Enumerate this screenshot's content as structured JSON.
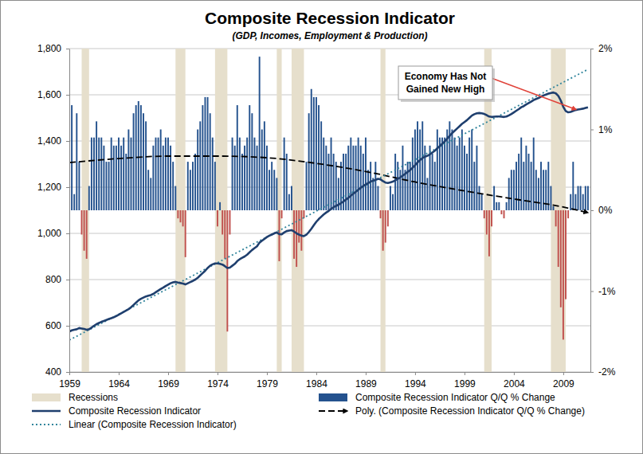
{
  "chart_data": {
    "type": "line",
    "title": "Composite Recession Indicator",
    "subtitle": "(GDP, Incomes, Employment & Production)",
    "xlim": [
      1959,
      2011.75
    ],
    "xticks": [
      1959,
      1964,
      1969,
      1974,
      1979,
      1984,
      1989,
      1994,
      1999,
      2004,
      2009
    ],
    "ylim": [
      400,
      1800
    ],
    "yticks": [
      400,
      600,
      800,
      {
        "value": 1000,
        "label": "1,000"
      },
      {
        "value": 1200,
        "label": "1,200"
      },
      {
        "value": 1400,
        "label": "1,400"
      },
      {
        "value": 1600,
        "label": "1,600"
      },
      {
        "value": 1800,
        "label": "1,800"
      }
    ],
    "y2lim": [
      -2,
      2
    ],
    "y2ticks": [
      {
        "value": -2,
        "label": "-2%"
      },
      {
        "value": -1,
        "label": "-1%"
      },
      {
        "value": 0,
        "label": "0%"
      },
      {
        "value": 1,
        "label": "1%"
      },
      {
        "value": 2,
        "label": "2%"
      }
    ],
    "grid": true,
    "legend": "bottom",
    "x": [
      1959,
      1959.25,
      1959.5,
      1959.75,
      1960,
      1960.25,
      1960.5,
      1960.75,
      1961,
      1961.25,
      1961.5,
      1961.75,
      1962,
      1962.25,
      1962.5,
      1962.75,
      1963,
      1963.25,
      1963.5,
      1963.75,
      1964,
      1964.25,
      1964.5,
      1964.75,
      1965,
      1965.25,
      1965.5,
      1965.75,
      1966,
      1966.25,
      1966.5,
      1966.75,
      1967,
      1967.25,
      1967.5,
      1967.75,
      1968,
      1968.25,
      1968.5,
      1968.75,
      1969,
      1969.25,
      1969.5,
      1969.75,
      1970,
      1970.25,
      1970.5,
      1970.75,
      1971,
      1971.25,
      1971.5,
      1971.75,
      1972,
      1972.25,
      1972.5,
      1972.75,
      1973,
      1973.25,
      1973.5,
      1973.75,
      1974,
      1974.25,
      1974.5,
      1974.75,
      1975,
      1975.25,
      1975.5,
      1975.75,
      1976,
      1976.25,
      1976.5,
      1976.75,
      1977,
      1977.25,
      1977.5,
      1977.75,
      1978,
      1978.25,
      1978.5,
      1978.75,
      1979,
      1979.25,
      1979.5,
      1979.75,
      1980,
      1980.25,
      1980.5,
      1980.75,
      1981,
      1981.25,
      1981.5,
      1981.75,
      1982,
      1982.25,
      1982.5,
      1982.75,
      1983,
      1983.25,
      1983.5,
      1983.75,
      1984,
      1984.25,
      1984.5,
      1984.75,
      1985,
      1985.25,
      1985.5,
      1985.75,
      1986,
      1986.25,
      1986.5,
      1986.75,
      1987,
      1987.25,
      1987.5,
      1987.75,
      1988,
      1988.25,
      1988.5,
      1988.75,
      1989,
      1989.25,
      1989.5,
      1989.75,
      1990,
      1990.25,
      1990.5,
      1990.75,
      1991,
      1991.25,
      1991.5,
      1991.75,
      1992,
      1992.25,
      1992.5,
      1992.75,
      1993,
      1993.25,
      1993.5,
      1993.75,
      1994,
      1994.25,
      1994.5,
      1994.75,
      1995,
      1995.25,
      1995.5,
      1995.75,
      1996,
      1996.25,
      1996.5,
      1996.75,
      1997,
      1997.25,
      1997.5,
      1997.75,
      1998,
      1998.25,
      1998.5,
      1998.75,
      1999,
      1999.25,
      1999.5,
      1999.75,
      2000,
      2000.25,
      2000.5,
      2000.75,
      2001,
      2001.25,
      2001.5,
      2001.75,
      2002,
      2002.25,
      2002.5,
      2002.75,
      2003,
      2003.25,
      2003.5,
      2003.75,
      2004,
      2004.25,
      2004.5,
      2004.75,
      2005,
      2005.25,
      2005.5,
      2005.75,
      2006,
      2006.25,
      2006.5,
      2006.75,
      2007,
      2007.25,
      2007.5,
      2007.75,
      2008,
      2008.25,
      2008.5,
      2008.75,
      2009,
      2009.25,
      2009.5,
      2009.75,
      2010,
      2010.25,
      2010.5,
      2010.75,
      2011,
      2011.25,
      2011.5
    ],
    "series": [
      {
        "name": "Recessions",
        "type": "band",
        "color": "#e6dfcc",
        "values": [
          [
            1960.25,
            1961
          ],
          [
            1969.75,
            1970.75
          ],
          [
            1973.75,
            1975
          ],
          [
            1980,
            1980.5
          ],
          [
            1981.5,
            1982.75
          ],
          [
            1990.5,
            1991
          ],
          [
            2001,
            2001.75
          ],
          [
            2007.75,
            2009.25
          ]
        ]
      },
      {
        "name": "Composite Recession Indicator Q/Q % Change",
        "type": "bar",
        "axis": "y2",
        "color": "#24528e",
        "values": [
          1.5,
          1.3,
          0.2,
          1.2,
          0.6,
          -0.3,
          -0.5,
          -0.6,
          0.3,
          0.9,
          0.9,
          1.1,
          0.9,
          0.9,
          0.8,
          0.6,
          0.6,
          0.9,
          0.8,
          0.8,
          0.9,
          0.8,
          0.9,
          0.7,
          1.0,
          0.9,
          1.2,
          1.3,
          1.35,
          1.3,
          1.2,
          1.1,
          0.5,
          0.4,
          0.8,
          0.9,
          0.9,
          1.0,
          0.8,
          0.9,
          0.9,
          0.8,
          0.6,
          0.3,
          -0.1,
          -0.15,
          -0.2,
          -0.58,
          0.6,
          0.5,
          0.6,
          0.7,
          1.0,
          1.1,
          1.3,
          1.4,
          1.4,
          1.2,
          0.9,
          0.6,
          -0.2,
          0.1,
          -0.3,
          -0.6,
          -1.5,
          -0.3,
          0.9,
          0.8,
          1.3,
          0.9,
          0.7,
          0.8,
          0.9,
          1.3,
          1.2,
          0.9,
          0.8,
          1.9,
          1.0,
          1.1,
          0.8,
          0.5,
          0.6,
          0.5,
          0.4,
          -0.63,
          -0.1,
          0.9,
          0.7,
          0.2,
          0.3,
          -0.6,
          -0.7,
          -0.4,
          -0.5,
          -0.1,
          0.6,
          1.2,
          1.5,
          1.4,
          1.4,
          1.3,
          1.1,
          0.9,
          0.8,
          0.7,
          0.9,
          0.7,
          0.6,
          0.4,
          0.6,
          0.7,
          0.7,
          0.8,
          0.9,
          0.8,
          0.8,
          0.9,
          0.8,
          0.7,
          0.9,
          0.5,
          0.6,
          0.4,
          0.6,
          0.3,
          -0.1,
          -0.5,
          -0.4,
          -0.2,
          0.3,
          0.2,
          0.7,
          0.6,
          0.5,
          0.8,
          0.5,
          0.6,
          0.6,
          0.9,
          1.0,
          1.1,
          1.0,
          1.1,
          0.8,
          0.4,
          0.8,
          0.7,
          0.6,
          1.0,
          0.9,
          0.9,
          0.9,
          1.0,
          1.1,
          1.0,
          0.9,
          0.8,
          0.9,
          1.0,
          0.8,
          0.7,
          0.9,
          1.0,
          0.6,
          0.8,
          0.3,
          0.2,
          -0.1,
          -0.3,
          -0.57,
          -0.2,
          0.3,
          0.1,
          0.1,
          -0.05,
          -0.1,
          0.1,
          0.4,
          0.5,
          0.5,
          0.6,
          0.7,
          0.9,
          0.6,
          0.8,
          0.7,
          0.6,
          0.9,
          0.5,
          0.4,
          0.6,
          0.5,
          0.5,
          0.6,
          0.3,
          0.05,
          -0.2,
          -0.7,
          -1.2,
          -1.6,
          -1.1,
          -0.1,
          0.2,
          0.6,
          0.2,
          0.3,
          0.3,
          0.2,
          0.3,
          0.3
        ],
        "colors": [
          "#24528e",
          "#24528e",
          "#24528e",
          "#24528e",
          "#24528e",
          "#c0504d",
          "#c0504d",
          "#c0504d",
          "#24528e",
          "#24528e",
          "#24528e",
          "#24528e",
          "#24528e",
          "#24528e",
          "#24528e",
          "#24528e",
          "#24528e",
          "#24528e",
          "#24528e",
          "#24528e",
          "#24528e",
          "#24528e",
          "#24528e",
          "#24528e",
          "#24528e",
          "#24528e",
          "#24528e",
          "#24528e",
          "#24528e",
          "#24528e",
          "#24528e",
          "#24528e",
          "#24528e",
          "#24528e",
          "#24528e",
          "#24528e",
          "#24528e",
          "#24528e",
          "#24528e",
          "#24528e",
          "#24528e",
          "#24528e",
          "#24528e",
          "#24528e",
          "#c0504d",
          "#c0504d",
          "#c0504d",
          "#c0504d",
          "#24528e",
          "#24528e",
          "#24528e",
          "#24528e",
          "#24528e",
          "#24528e",
          "#24528e",
          "#24528e",
          "#24528e",
          "#24528e",
          "#24528e",
          "#24528e",
          "#c0504d",
          "#24528e",
          "#c0504d",
          "#c0504d",
          "#c0504d",
          "#c0504d",
          "#24528e",
          "#24528e",
          "#24528e",
          "#24528e",
          "#24528e",
          "#24528e",
          "#24528e",
          "#24528e",
          "#24528e",
          "#24528e",
          "#24528e",
          "#24528e",
          "#24528e",
          "#24528e",
          "#24528e",
          "#24528e",
          "#24528e",
          "#24528e",
          "#24528e",
          "#c0504d",
          "#c0504d",
          "#24528e",
          "#24528e",
          "#24528e",
          "#24528e",
          "#c0504d",
          "#c0504d",
          "#c0504d",
          "#c0504d",
          "#c0504d",
          "#24528e",
          "#24528e",
          "#24528e",
          "#24528e",
          "#24528e",
          "#24528e",
          "#24528e",
          "#24528e",
          "#24528e",
          "#24528e",
          "#24528e",
          "#24528e",
          "#24528e",
          "#24528e",
          "#24528e",
          "#24528e",
          "#24528e",
          "#24528e",
          "#24528e",
          "#24528e",
          "#24528e",
          "#24528e",
          "#24528e",
          "#24528e",
          "#24528e",
          "#24528e",
          "#24528e",
          "#24528e",
          "#24528e",
          "#24528e",
          "#c0504d",
          "#c0504d",
          "#c0504d",
          "#c0504d",
          "#24528e",
          "#24528e",
          "#24528e",
          "#24528e",
          "#24528e",
          "#24528e",
          "#24528e",
          "#24528e",
          "#24528e",
          "#24528e",
          "#24528e",
          "#24528e",
          "#24528e",
          "#24528e",
          "#24528e",
          "#24528e",
          "#24528e",
          "#24528e",
          "#24528e",
          "#24528e",
          "#24528e",
          "#24528e",
          "#24528e",
          "#24528e",
          "#24528e",
          "#24528e",
          "#24528e",
          "#24528e",
          "#24528e",
          "#24528e",
          "#24528e",
          "#24528e",
          "#24528e",
          "#24528e",
          "#24528e",
          "#24528e",
          "#24528e",
          "#24528e",
          "#c0504d",
          "#c0504d",
          "#c0504d",
          "#c0504d",
          "#24528e",
          "#24528e",
          "#24528e",
          "#c0504d",
          "#c0504d",
          "#24528e",
          "#24528e",
          "#24528e",
          "#24528e",
          "#24528e",
          "#24528e",
          "#24528e",
          "#24528e",
          "#24528e",
          "#24528e",
          "#24528e",
          "#24528e",
          "#24528e",
          "#24528e",
          "#24528e",
          "#24528e",
          "#24528e",
          "#24528e",
          "#24528e",
          "#24528e",
          "#c0504d",
          "#c0504d",
          "#c0504d",
          "#c0504d",
          "#c0504d",
          "#c0504d",
          "#24528e",
          "#24528e",
          "#24528e",
          "#24528e",
          "#24528e",
          "#24528e",
          "#24528e",
          "#24528e"
        ]
      },
      {
        "name": "Composite Recession Indicator",
        "type": "line",
        "color": "#1f3f6e",
        "values": [
          575,
          580,
          583,
          585,
          590,
          588,
          586,
          583,
          585,
          592,
          600,
          607,
          612,
          617,
          621,
          625,
          629,
          633,
          637,
          642,
          648,
          654,
          660,
          666,
          672,
          680,
          690,
          700,
          710,
          717,
          722,
          727,
          730,
          733,
          738,
          745,
          752,
          759,
          765,
          772,
          778,
          784,
          788,
          790,
          787,
          785,
          783,
          779,
          784,
          789,
          794,
          800,
          808,
          818,
          828,
          838,
          850,
          860,
          866,
          870,
          870,
          868,
          865,
          858,
          850,
          852,
          860,
          868,
          880,
          888,
          894,
          900,
          908,
          918,
          928,
          936,
          944,
          960,
          968,
          976,
          984,
          990,
          995,
          1000,
          1004,
          997,
          996,
          1004,
          1010,
          1012,
          1014,
          1008,
          1000,
          995,
          990,
          988,
          994,
          1006,
          1020,
          1035,
          1050,
          1062,
          1072,
          1082,
          1090,
          1097,
          1106,
          1113,
          1119,
          1124,
          1131,
          1138,
          1146,
          1154,
          1163,
          1172,
          1180,
          1189,
          1197,
          1205,
          1212,
          1218,
          1224,
          1228,
          1232,
          1236,
          1234,
          1226,
          1220,
          1218,
          1221,
          1224,
          1230,
          1236,
          1242,
          1250,
          1258,
          1266,
          1274,
          1284,
          1295,
          1307,
          1317,
          1326,
          1332,
          1336,
          1342,
          1350,
          1358,
          1368,
          1378,
          1388,
          1398,
          1410,
          1422,
          1434,
          1444,
          1454,
          1464,
          1474,
          1482,
          1490,
          1500,
          1510,
          1516,
          1520,
          1521,
          1520,
          1517,
          1512,
          1506,
          1504,
          1505,
          1506,
          1506,
          1505,
          1504,
          1506,
          1511,
          1517,
          1524,
          1531,
          1538,
          1546,
          1551,
          1558,
          1564,
          1570,
          1577,
          1582,
          1586,
          1592,
          1597,
          1601,
          1605,
          1608,
          1610,
          1606,
          1595,
          1575,
          1548,
          1530,
          1524,
          1526,
          1530,
          1534,
          1536,
          1538,
          1540,
          1543,
          1546
        ]
      },
      {
        "name": "Poly. (Composite Recession Indicator Q/Q % Change)",
        "type": "line",
        "axis": "y2",
        "color": "#000000",
        "line_style": "dashed",
        "marker": "arrow",
        "x": [
          1959,
          1964,
          1969,
          1974,
          1979,
          1984,
          1989,
          1994,
          1999,
          2004,
          2009,
          2011.5
        ],
        "values": [
          0.59,
          0.64,
          0.67,
          0.67,
          0.65,
          0.58,
          0.48,
          0.35,
          0.24,
          0.14,
          0.04,
          -0.03
        ]
      },
      {
        "name": "Linear (Composite Recession Indicator)",
        "type": "line",
        "color": "#31859c",
        "line_style": "dotted",
        "x": [
          1959,
          2011.5
        ],
        "values": [
          538,
          1710
        ]
      }
    ],
    "annotations": [
      {
        "lines": [
          "Economy Has Not",
          "Gained New High"
        ],
        "x": 2010.3,
        "y": 1536
      }
    ]
  }
}
